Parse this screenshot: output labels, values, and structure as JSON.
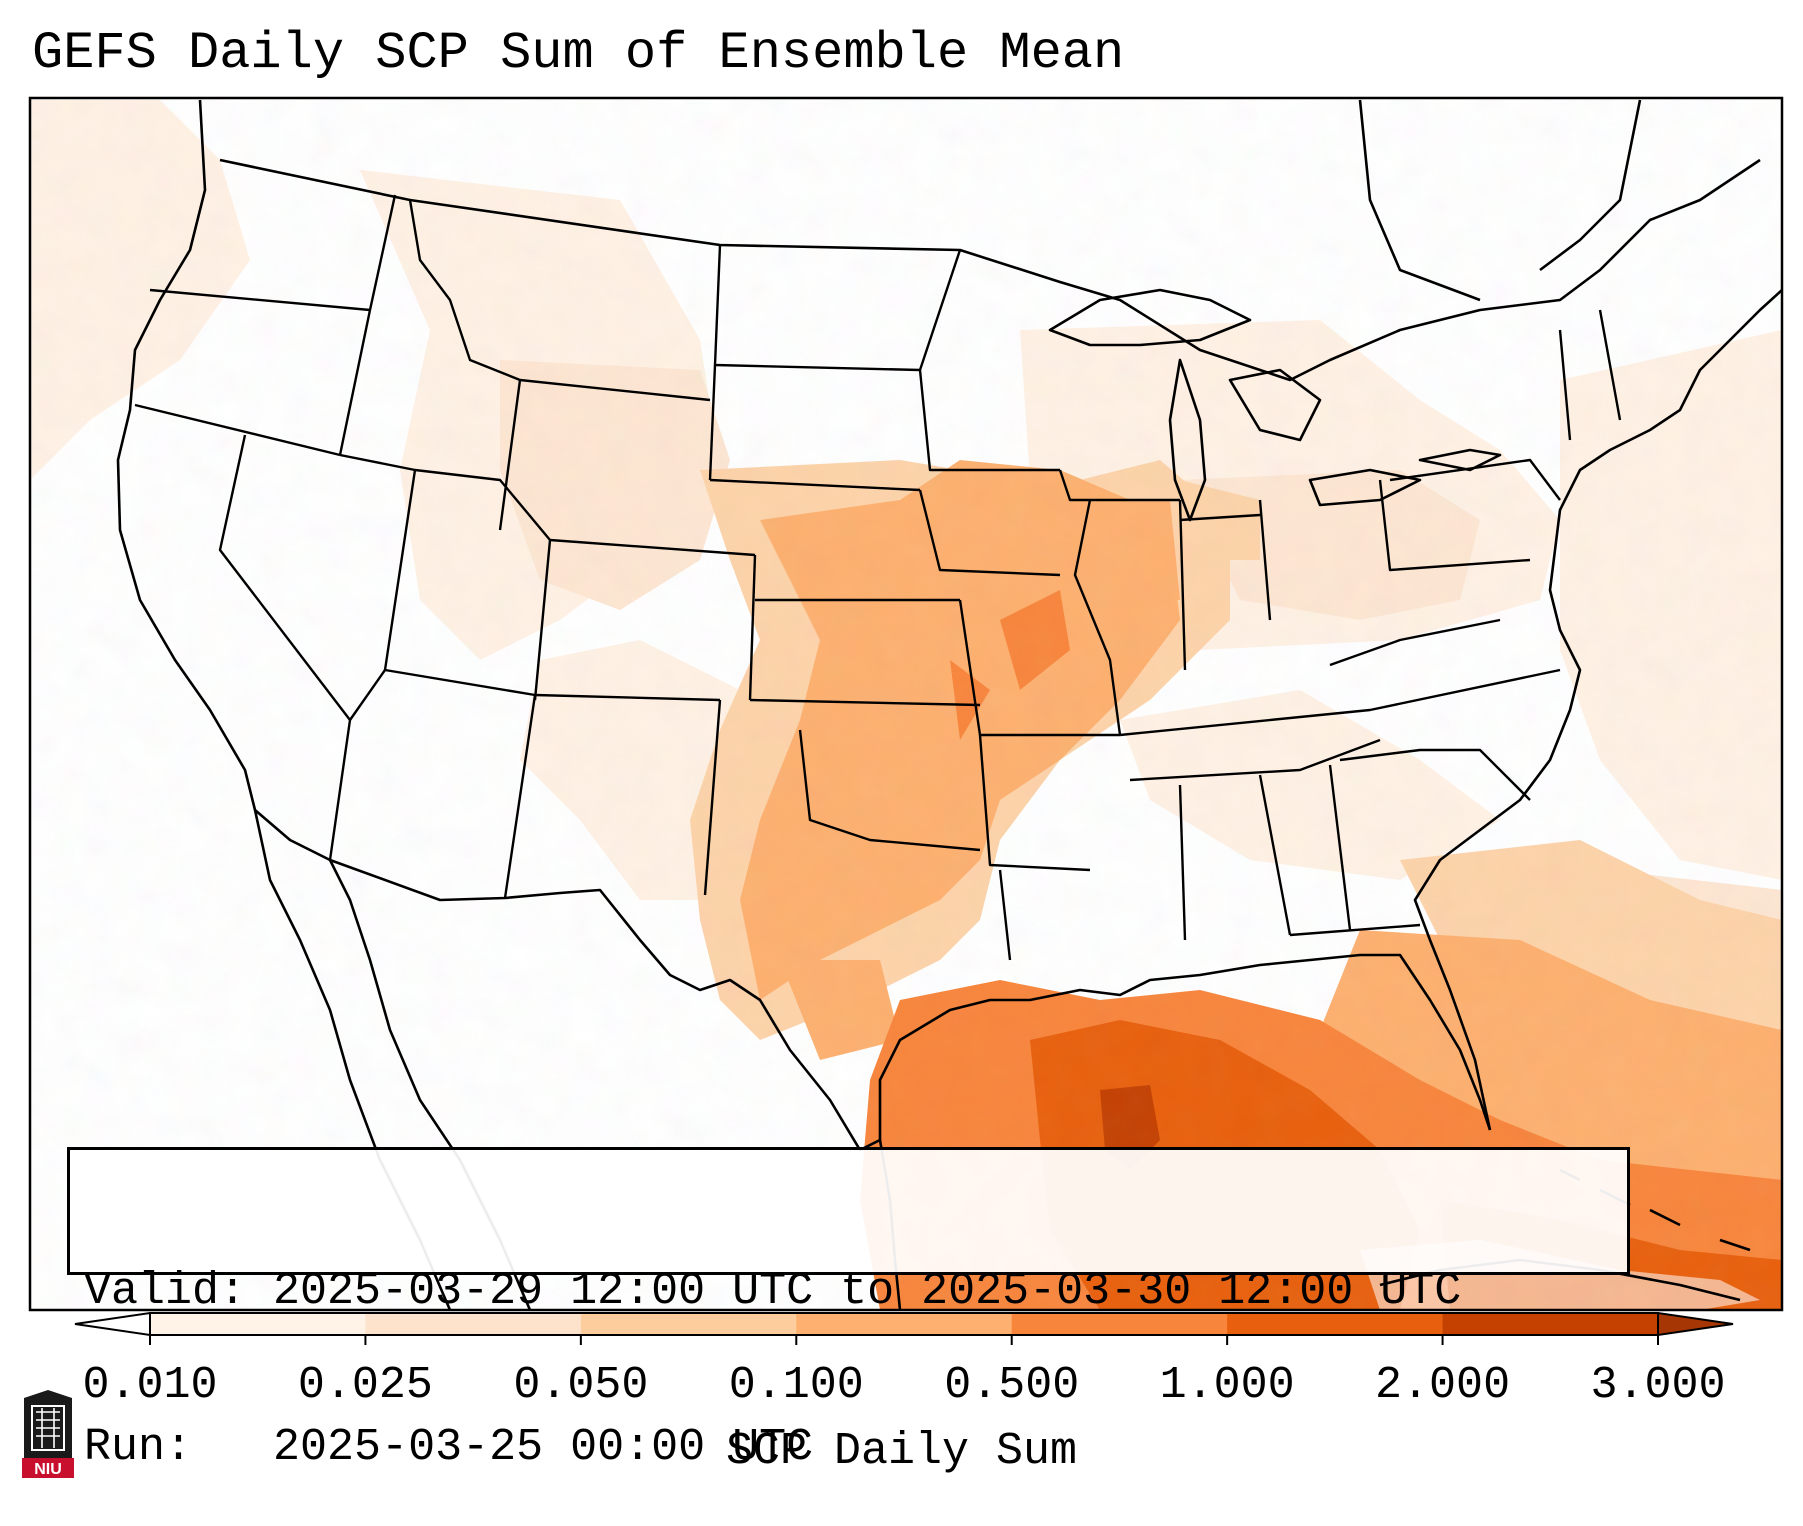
{
  "title": "GEFS Daily SCP Sum of Ensemble Mean",
  "valid": {
    "valid_label": "Valid:",
    "valid_value": "2025-03-29 12:00 UTC to 2025-03-30 12:00 UTC",
    "run_label": "Run:",
    "run_value": "2025-03-25 00:00 UTC"
  },
  "colorbar": {
    "label": "SCP Daily Sum",
    "ticks": [
      "0.010",
      "0.025",
      "0.050",
      "0.100",
      "0.500",
      "1.000",
      "2.000",
      "3.000"
    ],
    "colors": [
      "#fff3e8",
      "#fde3cc",
      "#fdcd9e",
      "#fdb06f",
      "#f8853c",
      "#e8600d",
      "#c44102"
    ],
    "extend": "both",
    "under_color": "#ffffff",
    "over_color": "#a63603"
  },
  "logo": {
    "text": "NIU",
    "colors": [
      "#c8102e",
      "#1a1a1a",
      "#ffffff"
    ]
  },
  "map": {
    "projection": "Lambert Conformal (CONUS)",
    "extent": "CONUS with southern Canada, northern Mexico, Gulf of Mexico and western Caribbean",
    "features": [
      "coastlines",
      "country borders",
      "US state borders"
    ],
    "field": "SCP daily sum of ensemble mean",
    "regions_highlighted": [
      {
        "region": "Gulf of Mexico",
        "level": "1.000 to 3.000"
      },
      {
        "region": "Texas / Oklahoma / Kansas / Missouri / Arkansas",
        "level": "0.100 to 0.500"
      },
      {
        "region": "Iowa / Illinois / Indiana",
        "level": "0.100 to 0.500"
      },
      {
        "region": "Colorado / Wyoming / Ohio Valley",
        "level": "0.010 to 0.100"
      }
    ]
  }
}
